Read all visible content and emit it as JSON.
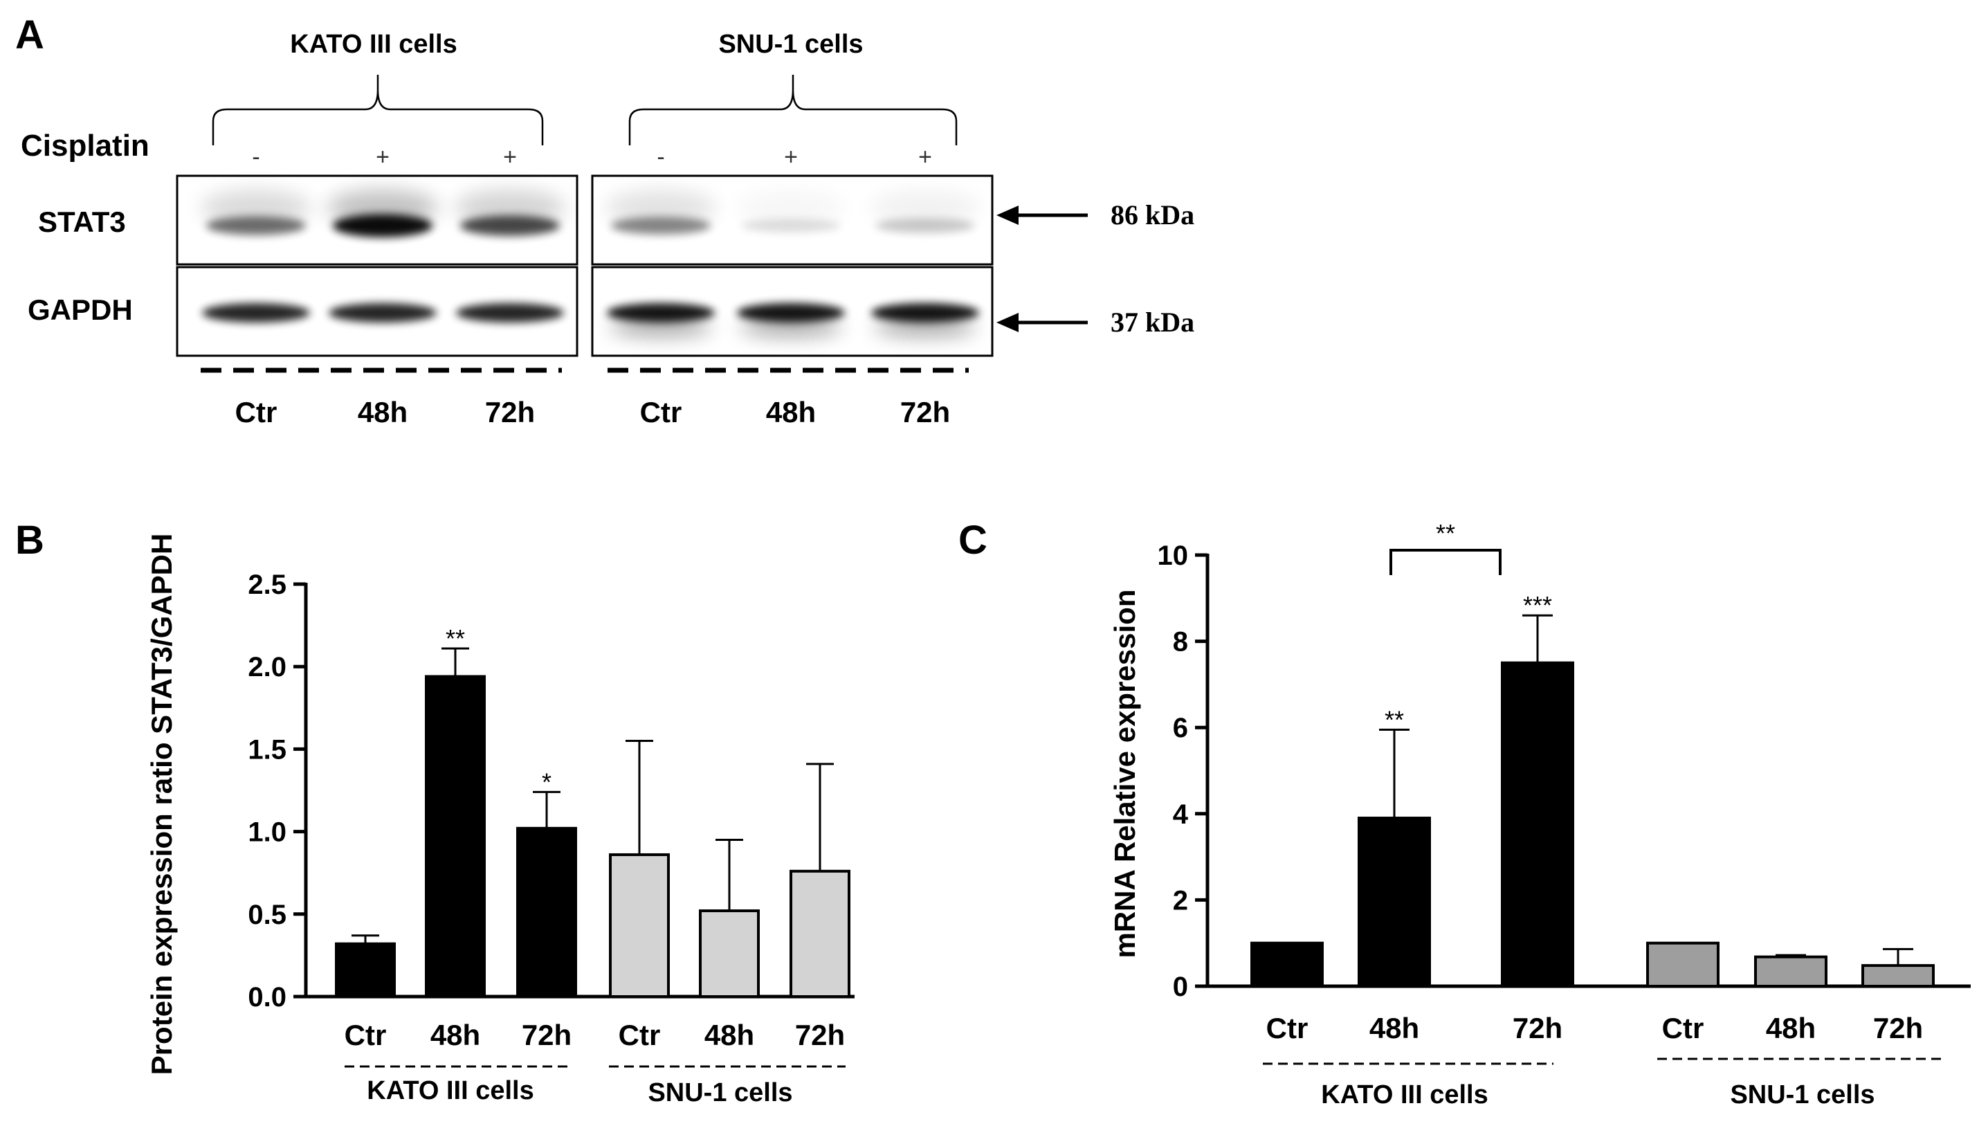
{
  "panel_a": {
    "letter": "A",
    "group_kato": "KATO III cells",
    "group_snu": "SNU-1 cells",
    "treatment_label": "Cisplatin",
    "treatment_signs": [
      "-",
      "+",
      "+",
      "-",
      "+",
      "+"
    ],
    "row_stat3": "STAT3",
    "row_gapdh": "GAPDH",
    "mw_stat3": "86 kDa",
    "mw_gapdh": "37 kDa",
    "lane_labels": [
      "Ctr",
      "48h",
      "72h",
      "Ctr",
      "48h",
      "72h"
    ],
    "band_strength": {
      "stat3": [
        0.55,
        0.95,
        0.7,
        0.45,
        0.12,
        0.2
      ],
      "gapdh": [
        0.85,
        0.85,
        0.85,
        0.9,
        0.9,
        0.9
      ]
    }
  },
  "chart_data": [
    {
      "panel": "B",
      "type": "bar",
      "title": "",
      "xlabel": "",
      "ylabel": "Protein expression ratio STAT3/GAPDH",
      "ylim": [
        0,
        2.5
      ],
      "yticks": [
        "0.0",
        "0.5",
        "1.0",
        "1.5",
        "2.0",
        "2.5"
      ],
      "categories": [
        "Ctr",
        "48h",
        "72h",
        "Ctr",
        "48h",
        "72h"
      ],
      "values": [
        0.32,
        1.94,
        1.02,
        0.86,
        0.52,
        0.76
      ],
      "errors": [
        0.05,
        0.17,
        0.22,
        0.69,
        0.43,
        0.65
      ],
      "fills": [
        "#000000",
        "#000000",
        "#000000",
        "#d3d3d3",
        "#d3d3d3",
        "#d3d3d3"
      ],
      "annotations": [
        "",
        "**",
        "*",
        "",
        "",
        ""
      ],
      "groups": [
        "KATO III cells",
        "SNU-1 cells"
      ]
    },
    {
      "panel": "C",
      "type": "bar",
      "title": "",
      "xlabel": "",
      "ylabel": "mRNA Relative expression",
      "ylim": [
        0,
        10
      ],
      "yticks": [
        "0",
        "2",
        "4",
        "6",
        "8",
        "10"
      ],
      "categories": [
        "Ctr",
        "48h",
        "72h",
        "Ctr",
        "48h",
        "72h"
      ],
      "values": [
        1.0,
        3.9,
        7.5,
        1.0,
        0.68,
        0.48
      ],
      "errors": [
        0.0,
        2.05,
        1.1,
        0.0,
        0.04,
        0.38
      ],
      "fills": [
        "#000000",
        "#000000",
        "#000000",
        "#9e9e9e",
        "#9e9e9e",
        "#9e9e9e"
      ],
      "annotations": [
        "",
        "**",
        "***",
        "",
        "",
        ""
      ],
      "bracket_label": "**",
      "groups": [
        "KATO III cells",
        "SNU-1 cells"
      ]
    }
  ],
  "colors": {
    "ink": "#000000",
    "snu_b": "#d3d3d3",
    "snu_c": "#9e9e9e"
  }
}
